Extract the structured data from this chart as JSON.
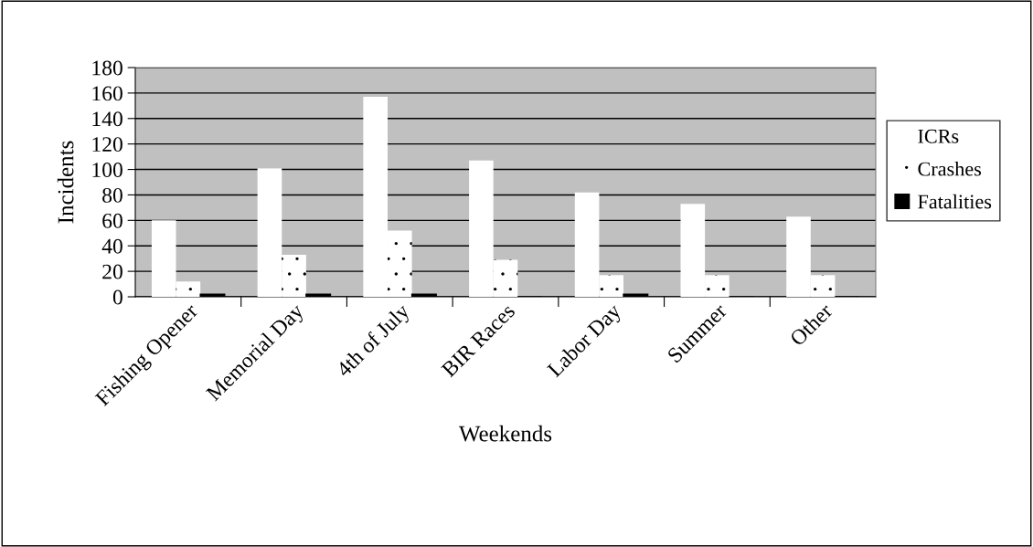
{
  "chart_data": {
    "type": "bar",
    "xlabel": "Weekends",
    "ylabel": "Incidents",
    "categories": [
      "Fishing Opener",
      "Memorial Day",
      "4th of July",
      "BIR Races",
      "Labor Day",
      "Summer",
      "Other"
    ],
    "series": [
      {
        "name": "ICRs",
        "color": "#ffffff",
        "values": [
          60,
          101,
          157,
          107,
          82,
          73,
          63
        ]
      },
      {
        "name": "Crashes",
        "color": "#ffffff",
        "values": [
          12,
          33,
          52,
          29,
          17,
          17,
          17
        ]
      },
      {
        "name": "Fatalities",
        "color": "#000000",
        "values": [
          2,
          2,
          2,
          0,
          2,
          0,
          0
        ]
      }
    ],
    "ylim": [
      0,
      180
    ],
    "yticks": [
      0,
      20,
      40,
      60,
      80,
      100,
      120,
      140,
      160,
      180
    ],
    "grid": "y",
    "legend": "right"
  }
}
